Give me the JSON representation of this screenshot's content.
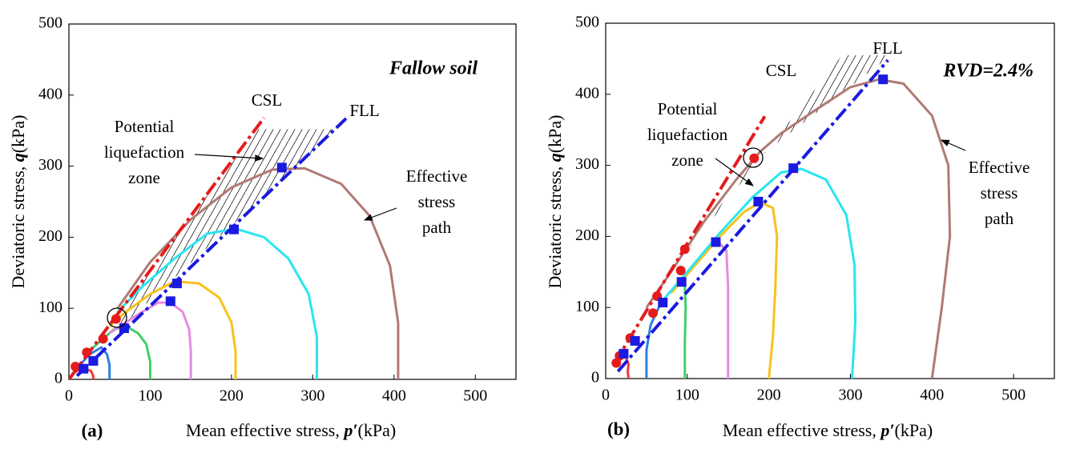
{
  "chart_data": [
    {
      "type": "line",
      "panel_label": "(a)",
      "label": "Fallow soil",
      "xlabel": [
        "Mean effective stress, ",
        "p′",
        "(kPa)"
      ],
      "ylabel": [
        "Deviatoric stress, ",
        "q",
        "(kPa)"
      ],
      "xlim": [
        0,
        550
      ],
      "ylim": [
        0,
        500
      ],
      "xticks": [
        0,
        100,
        200,
        300,
        400,
        500
      ],
      "yticks": [
        0,
        100,
        200,
        300,
        400,
        500
      ],
      "csl_label": "CSL",
      "fll_label": "FLL",
      "zone_label": [
        "Potential",
        "liquefaction",
        "zone"
      ],
      "path_label": [
        "Effective",
        "stress",
        "path"
      ],
      "series": [
        {
          "color": "#f03a3a",
          "x": [
            30,
            30,
            27,
            20,
            10,
            5
          ],
          "y": [
            0,
            5,
            12,
            15,
            12,
            8
          ]
        },
        {
          "color": "#2f7fe0",
          "x": [
            50,
            50,
            47,
            40,
            25,
            12
          ],
          "y": [
            0,
            20,
            35,
            45,
            35,
            18
          ]
        },
        {
          "color": "#3fcf6a",
          "x": [
            100,
            100,
            95,
            85,
            70,
            55,
            40,
            25
          ],
          "y": [
            0,
            25,
            50,
            65,
            75,
            70,
            55,
            40
          ]
        },
        {
          "color": "#e58be0",
          "x": [
            150,
            150,
            148,
            140,
            125,
            110,
            90,
            70,
            50
          ],
          "y": [
            0,
            40,
            70,
            95,
            108,
            108,
            95,
            80,
            65
          ]
        },
        {
          "color": "#f7c21a",
          "x": [
            205,
            205,
            200,
            185,
            160,
            130,
            100,
            70,
            50
          ],
          "y": [
            0,
            40,
            80,
            115,
            135,
            138,
            120,
            95,
            75
          ]
        },
        {
          "color": "#28e6f0",
          "x": [
            305,
            305,
            295,
            270,
            240,
            205,
            170,
            130,
            90,
            60
          ],
          "y": [
            0,
            60,
            120,
            170,
            200,
            212,
            205,
            170,
            130,
            95
          ]
        },
        {
          "color": "#b07a74",
          "x": [
            405,
            405,
            395,
            370,
            335,
            290,
            250,
            200,
            150,
            100,
            60
          ],
          "y": [
            0,
            80,
            160,
            230,
            275,
            297,
            295,
            270,
            225,
            165,
            100
          ]
        }
      ],
      "csl_line": {
        "color": "#e51b1b",
        "x": [
          0,
          240
        ],
        "y": [
          0,
          368
        ]
      },
      "fll_line": {
        "color": "#1a1ae0",
        "x": [
          10,
          341
        ],
        "y": [
          5,
          367
        ]
      },
      "csl_points": {
        "color": "#e51b1b",
        "x": [
          8,
          22,
          42,
          58
        ],
        "y": [
          18,
          38,
          57,
          85
        ]
      },
      "fll_points": {
        "color": "#1a1ae0",
        "x": [
          18,
          30,
          68,
          125,
          133,
          203,
          262
        ],
        "y": [
          15,
          26,
          72,
          110,
          135,
          211,
          298
        ]
      }
    },
    {
      "type": "line",
      "panel_label": "(b)",
      "label": "RVD=2.4%",
      "xlabel": [
        "Mean effective stress, ",
        "p′",
        "(kPa)"
      ],
      "ylabel": [
        "Deviatoric stress, ",
        "q",
        "(kPa)"
      ],
      "xlim": [
        0,
        550
      ],
      "ylim": [
        0,
        500
      ],
      "xticks": [
        0,
        100,
        200,
        300,
        400,
        500
      ],
      "yticks": [
        0,
        100,
        200,
        300,
        400,
        500
      ],
      "csl_label": "CSL",
      "fll_label": "FLL",
      "zone_label": [
        "Potential",
        "liquefaction",
        "zone"
      ],
      "path_label": [
        "Effective",
        "stress",
        "path"
      ],
      "series": [
        {
          "color": "#f03a3a",
          "x": [
            28,
            27,
            28,
            25,
            20
          ],
          "y": [
            0,
            10,
            20,
            30,
            30
          ]
        },
        {
          "color": "#2f7fe0",
          "x": [
            50,
            50,
            55,
            65,
            70
          ],
          "y": [
            0,
            40,
            75,
            100,
            107
          ]
        },
        {
          "color": "#3fcf6a",
          "x": [
            97,
            97,
            98,
            97,
            93
          ],
          "y": [
            0,
            50,
            100,
            130,
            137
          ]
        },
        {
          "color": "#e58be0",
          "x": [
            150,
            150,
            150,
            148,
            140,
            135
          ],
          "y": [
            0,
            60,
            130,
            180,
            190,
            192
          ]
        },
        {
          "color": "#f7c21a",
          "x": [
            200,
            205,
            208,
            210,
            205,
            190,
            170,
            140,
            110,
            80
          ],
          "y": [
            0,
            60,
            130,
            200,
            240,
            248,
            235,
            200,
            160,
            120
          ]
        },
        {
          "color": "#28e6f0",
          "x": [
            302,
            306,
            305,
            295,
            270,
            240,
            215,
            180,
            140,
            100,
            70
          ],
          "y": [
            0,
            80,
            160,
            230,
            280,
            295,
            290,
            255,
            205,
            150,
            110
          ]
        },
        {
          "color": "#b07a74",
          "x": [
            400,
            412,
            422,
            420,
            400,
            365,
            335,
            300,
            260,
            215,
            190,
            160,
            120,
            80,
            50
          ],
          "y": [
            0,
            100,
            200,
            300,
            370,
            415,
            421,
            410,
            380,
            345,
            320,
            280,
            220,
            150,
            100
          ]
        }
      ],
      "csl_line": {
        "color": "#e51b1b",
        "x": [
          10,
          195
        ],
        "y": [
          20,
          369
        ]
      },
      "fll_line": {
        "color": "#1a1ae0",
        "x": [
          15,
          346
        ],
        "y": [
          10,
          448
        ]
      },
      "csl_points": {
        "color": "#e51b1b",
        "x": [
          13,
          17,
          30,
          58,
          63,
          92,
          97,
          182
        ],
        "y": [
          22,
          32,
          57,
          92,
          116,
          152,
          182,
          310
        ]
      },
      "fll_points": {
        "color": "#1a1ae0",
        "x": [
          22,
          36,
          70,
          93,
          135,
          187,
          230,
          340
        ],
        "y": [
          35,
          53,
          107,
          136,
          192,
          249,
          296,
          421
        ]
      }
    }
  ]
}
